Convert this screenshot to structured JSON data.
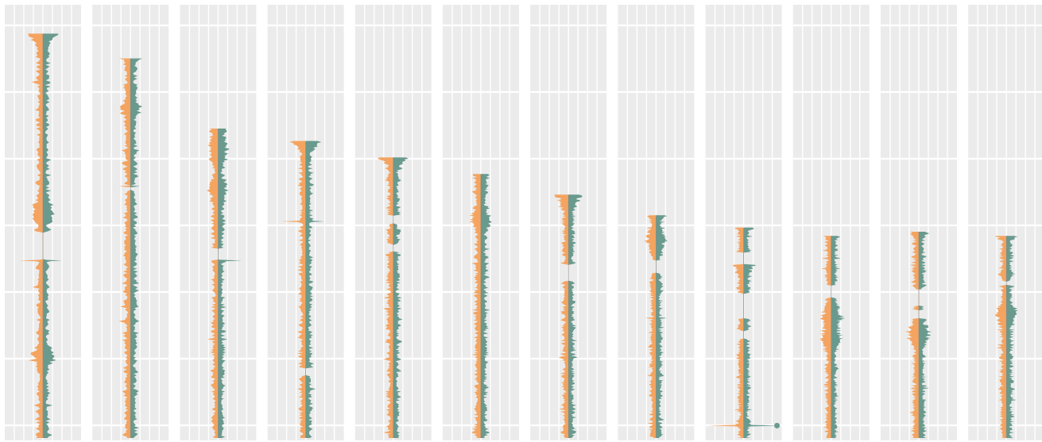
{
  "chart_data": {
    "type": "area",
    "title": "",
    "xlabel": "",
    "ylabel": "",
    "orientation": "vertical-mirrored",
    "legend": "none",
    "grid": true,
    "panel_background": "#ebebeb",
    "grid_color": "#ffffff",
    "colors": {
      "left_series": "#f4a460",
      "right_series": "#6a9a8e",
      "marker": "#6a9a8e"
    },
    "panels": [
      {
        "panel": 1,
        "top": 0.02,
        "gaps": [
          [
            0.5,
            0.57
          ]
        ],
        "spikes": [
          [
            0.57,
            1.0,
            0.8
          ]
        ],
        "bursts": [
          0.02,
          0.45,
          0.8
        ]
      },
      {
        "panel": 2,
        "top": 0.08,
        "gaps": [
          [
            0.385,
            0.4
          ]
        ],
        "spikes": [
          [
            0.39,
            0.5,
            0.4
          ]
        ],
        "bursts": [
          0.2
        ]
      },
      {
        "panel": 3,
        "top": 0.25,
        "gaps": [
          [
            0.54,
            0.57
          ]
        ],
        "spikes": [
          [
            0.57,
            0.3,
            1.0
          ]
        ],
        "bursts": [
          0.3,
          0.4
        ]
      },
      {
        "panel": 4,
        "top": 0.28,
        "gaps": [
          [
            0.83,
            0.85
          ]
        ],
        "spikes": [
          [
            0.475,
            1.0,
            0.8
          ]
        ],
        "bursts": [
          0.28
        ]
      },
      {
        "panel": 5,
        "top": 0.32,
        "gaps": [
          [
            0.46,
            0.48
          ],
          [
            0.53,
            0.55
          ]
        ],
        "spikes": [],
        "bursts": [
          0.32
        ]
      },
      {
        "panel": 6,
        "top": 0.36,
        "gaps": [],
        "spikes": [],
        "bursts": [
          0.47
        ]
      },
      {
        "panel": 7,
        "top": 0.41,
        "gaps": [
          [
            0.58,
            0.62
          ]
        ],
        "spikes": [],
        "bursts": [
          0.41
        ]
      },
      {
        "panel": 8,
        "top": 0.46,
        "gaps": [
          [
            0.57,
            0.6
          ]
        ],
        "spikes": [],
        "bursts": [
          0.52
        ]
      },
      {
        "panel": 9,
        "top": 0.49,
        "gaps": [
          [
            0.55,
            0.58
          ],
          [
            0.65,
            0.71
          ],
          [
            0.74,
            0.76
          ]
        ],
        "spikes": [
          [
            0.97,
            1.5,
            1.6
          ]
        ],
        "bursts": [
          0.58
        ],
        "marker_y": 0.97
      },
      {
        "panel": 10,
        "top": 0.51,
        "gaps": [
          [
            0.63,
            0.66
          ]
        ],
        "spikes": [],
        "bursts": [
          0.71,
          0.76
        ]
      },
      {
        "panel": 11,
        "top": 0.5,
        "gaps": [
          [
            0.64,
            0.68
          ],
          [
            0.69,
            0.71
          ]
        ],
        "spikes": [],
        "bursts": [
          0.75
        ]
      },
      {
        "panel": 12,
        "top": 0.51,
        "gaps": [
          [
            0.62,
            0.63
          ]
        ],
        "spikes": [],
        "bursts": [
          0.7
        ]
      }
    ]
  }
}
